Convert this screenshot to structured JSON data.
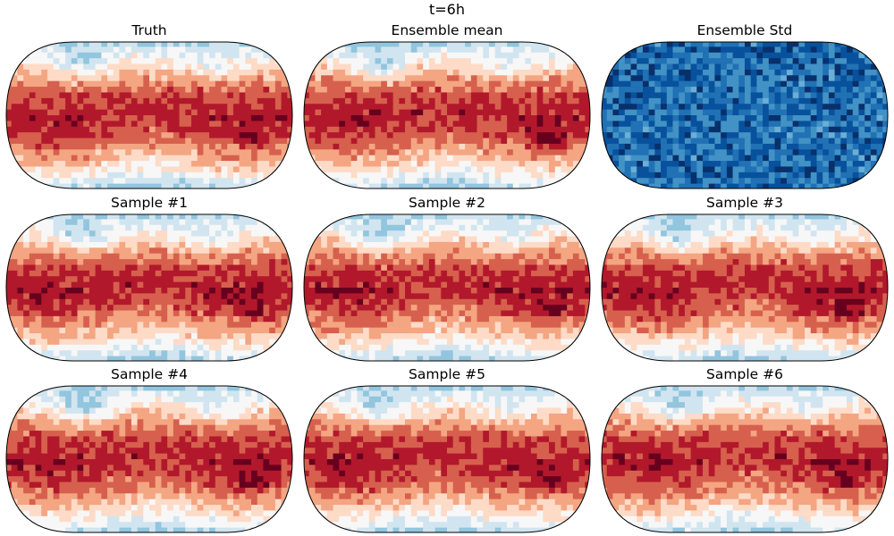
{
  "figure": {
    "title": "t=6h"
  },
  "panels": [
    {
      "title": "Truth",
      "colormap": "RdBu_r",
      "seed": 11
    },
    {
      "title": "Ensemble mean",
      "colormap": "RdBu_r",
      "seed": 0
    },
    {
      "title": "Ensemble Std",
      "colormap": "Blues",
      "seed": 7
    },
    {
      "title": "Sample #1",
      "colormap": "RdBu_r",
      "seed": 21
    },
    {
      "title": "Sample #2",
      "colormap": "RdBu_r",
      "seed": 22
    },
    {
      "title": "Sample #3",
      "colormap": "RdBu_r",
      "seed": 23
    },
    {
      "title": "Sample #4",
      "colormap": "RdBu_r",
      "seed": 24
    },
    {
      "title": "Sample #5",
      "colormap": "RdBu_r",
      "seed": 25
    },
    {
      "title": "Sample #6",
      "colormap": "RdBu_r",
      "seed": 26
    }
  ],
  "projection": "Robinson",
  "colors": {
    "RdBu_r": [
      "#2166ac",
      "#4393c3",
      "#92c5de",
      "#d1e5f0",
      "#f7f7f7",
      "#fddbc7",
      "#f4a582",
      "#d6604d",
      "#b2182b",
      "#67001f"
    ],
    "Blues": [
      "#deebf7",
      "#9ecae1",
      "#6baed6",
      "#4292c6",
      "#2171b5",
      "#08519c",
      "#08306b"
    ]
  }
}
